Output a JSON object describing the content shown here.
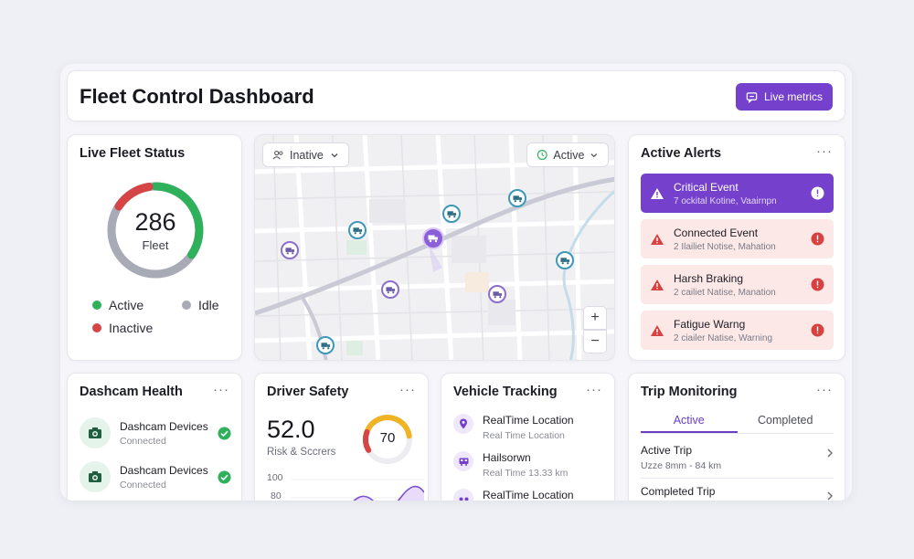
{
  "header": {
    "title": "Fleet Control Dashboard",
    "live_metrics_label": "Live metrics"
  },
  "fleet_status": {
    "title": "Live Fleet Status",
    "total": "286",
    "total_label": "Fleet",
    "legend": [
      {
        "label": "Active",
        "color": "#2fb05a"
      },
      {
        "label": "Idle",
        "color": "#a8aab6"
      },
      {
        "label": "Inactive",
        "color": "#d64545"
      }
    ]
  },
  "map": {
    "filter_left": "Inative",
    "filter_right": "Active",
    "zoom_in": "+",
    "zoom_out": "−"
  },
  "alerts": {
    "title": "Active Alerts",
    "more": "···",
    "items": [
      {
        "title": "Critical Event",
        "subtitle": "7 ockital Kotine, Vaairnpn",
        "variant": "critical"
      },
      {
        "title": "Connected Event",
        "subtitle": "2 Ilailiet Notise, Mahation",
        "variant": "warning"
      },
      {
        "title": "Harsh Braking",
        "subtitle": "2 cailiet Natise, Manation",
        "variant": "warning"
      },
      {
        "title": "Fatigue Warng",
        "subtitle": "2 ciailer Natise, Warning",
        "variant": "warning"
      }
    ]
  },
  "dashcam": {
    "title": "Dashcam Health",
    "more": "···",
    "devices": [
      {
        "name": "Dashcam Devices",
        "status": "Connected"
      },
      {
        "name": "Dashcam Devices",
        "status": "Connected"
      }
    ]
  },
  "driver_safety": {
    "title": "Driver Safety",
    "more": "···",
    "score": "52.0",
    "score_label": "Risk & Sccrers",
    "gauge_value": "70",
    "gauge_fraction": 0.7,
    "axis_ticks": [
      "100",
      "80"
    ]
  },
  "vehicle_tracking": {
    "title": "Vehicle Tracking",
    "more": "···",
    "items": [
      {
        "title": "RealTime Location",
        "subtitle": "Real Time Location"
      },
      {
        "title": "Hailsorwn",
        "subtitle": "Real Time 13.33 km"
      },
      {
        "title": "RealTime Location",
        "subtitle": ""
      }
    ]
  },
  "trip": {
    "title": "Trip Monitoring",
    "more": "···",
    "tabs": [
      "Active",
      "Completed"
    ],
    "rows": [
      {
        "title": "Active Trip",
        "subtitle": "Uzze 8mm - 84 km"
      },
      {
        "title": "Completed Trip",
        "subtitle": ""
      }
    ]
  },
  "colors": {
    "accent": "#7440cc",
    "active": "#2fb05a",
    "idle": "#a8aab6",
    "inactive": "#d64545",
    "alert_bg": "#fde8e8"
  }
}
